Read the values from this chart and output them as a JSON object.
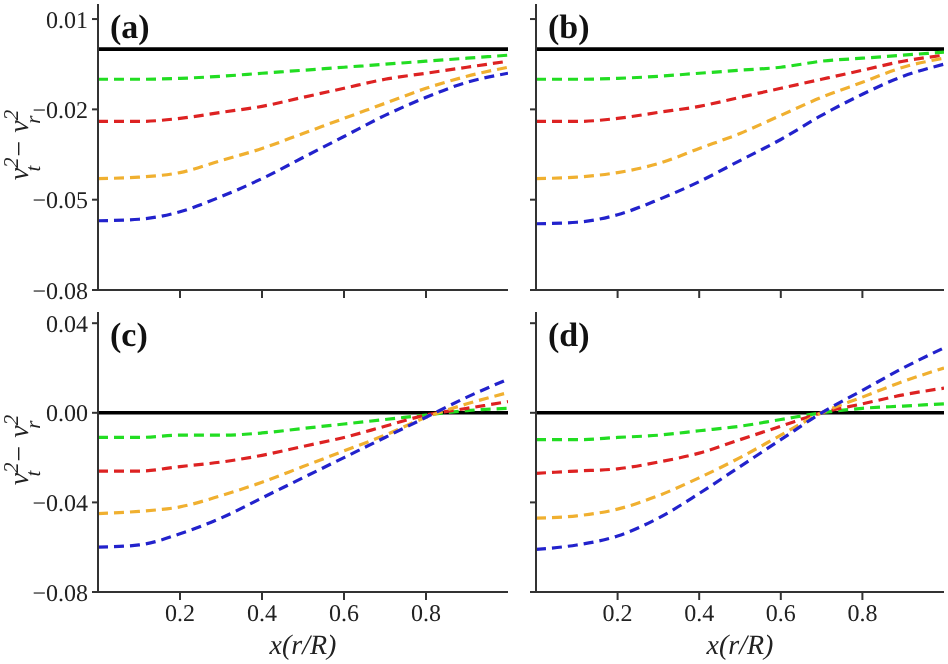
{
  "chart_data": [
    {
      "type": "line",
      "annotations": [
        "(a)"
      ],
      "ylabel": "v$^{2}$$_{t}$ − v$^{2}$$_{r}$",
      "x": [
        0,
        0.1,
        0.2,
        0.3,
        0.4,
        0.5,
        0.6,
        0.7,
        0.8,
        0.9,
        1.0
      ],
      "xlim": [
        0,
        1
      ],
      "xticks": [
        0.2,
        0.4,
        0.6,
        0.8
      ],
      "ylim": [
        -0.08,
        0.015
      ],
      "yticks": [
        0.01,
        -0.02,
        -0.05,
        -0.08
      ],
      "tick_labels": "y",
      "grid": false,
      "legend": false,
      "marker": "none",
      "line_style": "dashed",
      "ref_lines": [
        {
          "axis": "y",
          "value": 0,
          "color": "#000000"
        }
      ],
      "series": [
        {
          "color": "#22dd22",
          "values": [
            -0.01,
            -0.01,
            -0.0097,
            -0.009,
            -0.008,
            -0.007,
            -0.006,
            -0.005,
            -0.004,
            -0.003,
            -0.002
          ]
        },
        {
          "color": "#dd2222",
          "values": [
            -0.024,
            -0.024,
            -0.023,
            -0.021,
            -0.019,
            -0.016,
            -0.013,
            -0.01,
            -0.008,
            -0.006,
            -0.004
          ]
        },
        {
          "color": "#f0b030",
          "values": [
            -0.043,
            -0.0425,
            -0.041,
            -0.037,
            -0.033,
            -0.028,
            -0.023,
            -0.018,
            -0.013,
            -0.009,
            -0.006
          ]
        },
        {
          "color": "#2222cc",
          "values": [
            -0.057,
            -0.0565,
            -0.054,
            -0.049,
            -0.043,
            -0.036,
            -0.029,
            -0.022,
            -0.016,
            -0.011,
            -0.008
          ]
        }
      ]
    },
    {
      "type": "line",
      "annotations": [
        "(b)"
      ],
      "x": [
        0,
        0.1,
        0.2,
        0.3,
        0.4,
        0.5,
        0.6,
        0.7,
        0.8,
        0.9,
        1.0
      ],
      "xlim": [
        0,
        1
      ],
      "xticks": [
        0.2,
        0.4,
        0.6,
        0.8
      ],
      "ylim": [
        -0.08,
        0.015
      ],
      "yticks": [
        0.01,
        -0.02,
        -0.05,
        -0.08
      ],
      "tick_labels": false,
      "grid": false,
      "legend": false,
      "marker": "none",
      "line_style": "dashed",
      "ref_lines": [
        {
          "axis": "y",
          "value": 0,
          "color": "#000000"
        }
      ],
      "series": [
        {
          "color": "#22dd22",
          "values": [
            -0.01,
            -0.01,
            -0.0097,
            -0.009,
            -0.008,
            -0.007,
            -0.006,
            -0.004,
            -0.003,
            -0.002,
            -0.001
          ]
        },
        {
          "color": "#dd2222",
          "values": [
            -0.024,
            -0.024,
            -0.023,
            -0.021,
            -0.019,
            -0.016,
            -0.013,
            -0.01,
            -0.007,
            -0.004,
            -0.002
          ]
        },
        {
          "color": "#f0b030",
          "values": [
            -0.043,
            -0.0425,
            -0.041,
            -0.038,
            -0.033,
            -0.028,
            -0.022,
            -0.016,
            -0.011,
            -0.006,
            -0.003
          ]
        },
        {
          "color": "#2222cc",
          "values": [
            -0.058,
            -0.0575,
            -0.055,
            -0.05,
            -0.044,
            -0.037,
            -0.03,
            -0.022,
            -0.015,
            -0.009,
            -0.005
          ]
        }
      ]
    },
    {
      "type": "line",
      "annotations": [
        "(c)"
      ],
      "ylabel": "v$^{2}$$_{t}$ − v$^{2}$$_{r}$",
      "xlabel": "x(r/R)",
      "x": [
        0,
        0.1,
        0.2,
        0.3,
        0.4,
        0.5,
        0.6,
        0.7,
        0.8,
        0.9,
        1.0
      ],
      "xlim": [
        0,
        1
      ],
      "xticks": [
        0.2,
        0.4,
        0.6,
        0.8
      ],
      "ylim": [
        -0.08,
        0.045
      ],
      "yticks": [
        {
          "value": 0.04,
          "label": "0.04"
        },
        {
          "value": 0,
          "label": "0.00"
        },
        {
          "value": -0.04,
          "label": "−0.04"
        },
        {
          "value": -0.08,
          "label": "−0.08"
        }
      ],
      "grid": false,
      "legend": false,
      "marker": "none",
      "line_style": "dashed",
      "ref_lines": [
        {
          "axis": "y",
          "value": 0,
          "color": "#000000"
        }
      ],
      "series": [
        {
          "color": "#22dd22",
          "values": [
            -0.011,
            -0.011,
            -0.01,
            -0.01,
            -0.009,
            -0.007,
            -0.005,
            -0.003,
            -0.001,
            0.001,
            0.002
          ]
        },
        {
          "color": "#dd2222",
          "values": [
            -0.026,
            -0.026,
            -0.024,
            -0.022,
            -0.019,
            -0.015,
            -0.011,
            -0.006,
            -0.001,
            0.002,
            0.005
          ]
        },
        {
          "color": "#f0b030",
          "values": [
            -0.045,
            -0.044,
            -0.042,
            -0.037,
            -0.031,
            -0.024,
            -0.017,
            -0.01,
            -0.002,
            0.004,
            0.009
          ]
        },
        {
          "color": "#2222cc",
          "values": [
            -0.06,
            -0.059,
            -0.054,
            -0.047,
            -0.038,
            -0.029,
            -0.02,
            -0.011,
            -0.002,
            0.007,
            0.015
          ]
        }
      ]
    },
    {
      "type": "line",
      "annotations": [
        "(d)"
      ],
      "xlabel": "x(r/R)",
      "x": [
        0,
        0.1,
        0.2,
        0.3,
        0.4,
        0.5,
        0.6,
        0.7,
        0.8,
        0.9,
        1.0
      ],
      "xlim": [
        0,
        1
      ],
      "xticks": [
        0.2,
        0.4,
        0.6,
        0.8
      ],
      "ylim": [
        -0.08,
        0.045
      ],
      "yticks": [
        {
          "value": 0.04,
          "label": null
        },
        {
          "value": 0,
          "label": null
        },
        {
          "value": -0.04,
          "label": null
        },
        {
          "value": -0.08,
          "label": null
        }
      ],
      "tick_labels": "x",
      "grid": false,
      "legend": false,
      "marker": "none",
      "line_style": "dashed",
      "ref_lines": [
        {
          "axis": "y",
          "value": 0,
          "color": "#000000"
        }
      ],
      "series": [
        {
          "color": "#22dd22",
          "values": [
            -0.012,
            -0.012,
            -0.011,
            -0.01,
            -0.008,
            -0.006,
            -0.003,
            0.0,
            0.002,
            0.003,
            0.004
          ]
        },
        {
          "color": "#dd2222",
          "values": [
            -0.027,
            -0.026,
            -0.025,
            -0.022,
            -0.018,
            -0.012,
            -0.006,
            0.0,
            0.004,
            0.008,
            0.011
          ]
        },
        {
          "color": "#f0b030",
          "values": [
            -0.047,
            -0.046,
            -0.043,
            -0.037,
            -0.029,
            -0.02,
            -0.01,
            0.0,
            0.007,
            0.014,
            0.02
          ]
        },
        {
          "color": "#2222cc",
          "values": [
            -0.061,
            -0.059,
            -0.055,
            -0.047,
            -0.036,
            -0.024,
            -0.012,
            0.0,
            0.01,
            0.02,
            0.029
          ]
        }
      ]
    }
  ]
}
